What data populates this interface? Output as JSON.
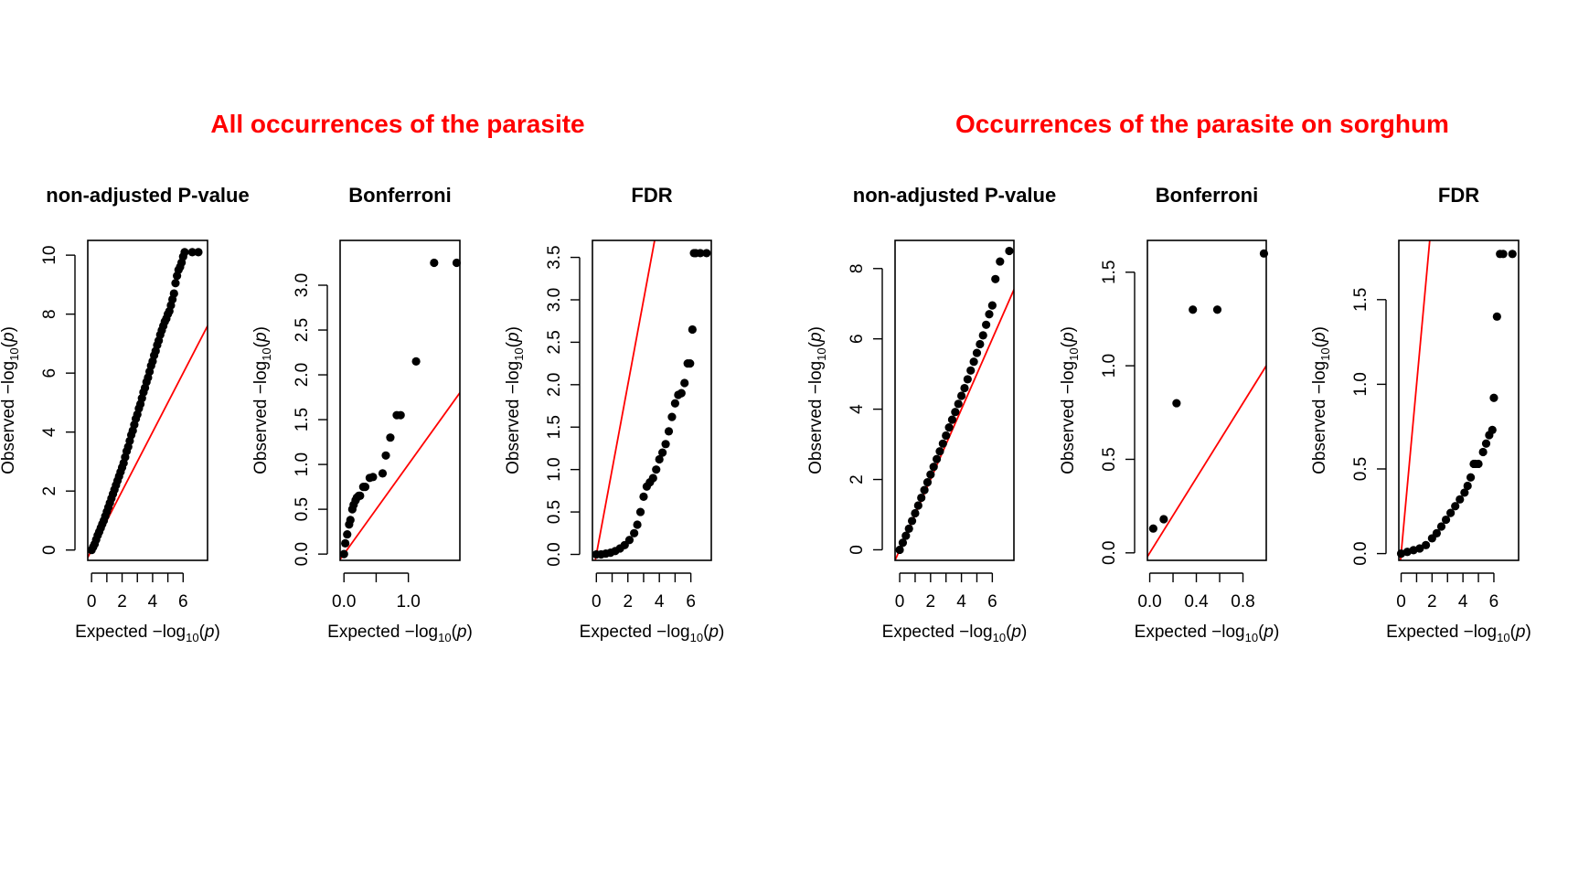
{
  "colors": {
    "title": "#ff0000",
    "reference_line": "#ff0000",
    "points": "#000000",
    "frame": "#000000"
  },
  "groups": [
    {
      "title": "All occurrences of the parasite"
    },
    {
      "title": "Occurrences of the parasite on sorghum"
    }
  ],
  "axis_text": {
    "xlabel_prefix": "Expected  −log",
    "ylabel_prefix": "Observed  −log",
    "log_base": "10",
    "p_symbol": "p"
  },
  "chart_data": [
    {
      "type": "scatter",
      "group": "All occurrences of the parasite",
      "title": "non-adjusted P-value",
      "xlim": [
        -0.25,
        7.6
      ],
      "ylim": [
        -0.35,
        10.5
      ],
      "xticks": [
        0,
        2,
        4,
        6
      ],
      "xtick_labels": [
        "0",
        "2",
        "4",
        "6"
      ],
      "yticks": [
        0,
        2,
        4,
        6,
        8,
        10
      ],
      "ytick_labels": [
        "0",
        "2",
        "4",
        "6",
        "8",
        "10"
      ],
      "reference_line": {
        "slope": 1,
        "intercept": 0
      },
      "series": [
        {
          "x": [
            0,
            0.1,
            0.2,
            0.3,
            0.4,
            0.5,
            0.6,
            0.7,
            0.8,
            0.9,
            1,
            1.1,
            1.2,
            1.3,
            1.4,
            1.5,
            1.6,
            1.7,
            1.8,
            1.9,
            2,
            2.1,
            2.2,
            2.3,
            2.4,
            2.5,
            2.6,
            2.7,
            2.8,
            2.9,
            3,
            3.1,
            3.2,
            3.3,
            3.4,
            3.5,
            3.6,
            3.7,
            3.8,
            3.9,
            4,
            4.1,
            4.2,
            4.3,
            4.4,
            4.5,
            4.6,
            4.7,
            4.8,
            4.9,
            5,
            5.1,
            5.2,
            5.3,
            5.4,
            5.5,
            5.6,
            5.7,
            5.8,
            5.9,
            6,
            6.1,
            6.6,
            7.0
          ],
          "y": [
            0,
            0.1,
            0.2,
            0.35,
            0.5,
            0.62,
            0.75,
            0.88,
            1.0,
            1.15,
            1.3,
            1.45,
            1.6,
            1.75,
            1.9,
            2.05,
            2.2,
            2.35,
            2.5,
            2.65,
            2.8,
            2.95,
            3.15,
            3.35,
            3.5,
            3.7,
            3.9,
            4.05,
            4.25,
            4.45,
            4.6,
            4.8,
            4.95,
            5.15,
            5.35,
            5.5,
            5.7,
            5.85,
            6.05,
            6.25,
            6.4,
            6.6,
            6.75,
            6.95,
            7.1,
            7.3,
            7.45,
            7.6,
            7.75,
            7.85,
            8.0,
            8.1,
            8.3,
            8.5,
            8.7,
            9.05,
            9.3,
            9.5,
            9.6,
            9.75,
            9.95,
            10.1,
            10.1,
            10.1
          ]
        }
      ]
    },
    {
      "type": "scatter",
      "group": "All occurrences of the parasite",
      "title": "Bonferroni",
      "xlim": [
        -0.06,
        1.8
      ],
      "ylim": [
        -0.07,
        3.5
      ],
      "xticks": [
        0,
        1
      ],
      "xtick_labels": [
        "0.0",
        "1.0"
      ],
      "yticks": [
        0,
        0.5,
        1,
        1.5,
        2,
        2.5,
        3
      ],
      "ytick_labels": [
        "0.0",
        "0.5",
        "1.0",
        "1.5",
        "2.0",
        "2.5",
        "3.0"
      ],
      "reference_line": {
        "slope": 1,
        "intercept": 0
      },
      "series": [
        {
          "x": [
            0.0,
            0.02,
            0.05,
            0.08,
            0.1,
            0.13,
            0.15,
            0.18,
            0.2,
            0.23,
            0.25,
            0.3,
            0.33,
            0.4,
            0.45,
            0.6,
            0.65,
            0.72,
            0.82,
            0.88,
            1.12,
            1.4,
            1.75
          ],
          "y": [
            0.0,
            0.12,
            0.22,
            0.33,
            0.38,
            0.5,
            0.55,
            0.6,
            0.63,
            0.65,
            0.65,
            0.75,
            0.75,
            0.85,
            0.86,
            0.9,
            1.1,
            1.3,
            1.55,
            1.55,
            2.15,
            3.25,
            3.25
          ]
        }
      ]
    },
    {
      "type": "scatter",
      "group": "All occurrences of the parasite",
      "title": "FDR",
      "xlim": [
        -0.25,
        7.3
      ],
      "ylim": [
        -0.07,
        3.7
      ],
      "xticks": [
        0,
        2,
        4,
        6
      ],
      "xtick_labels": [
        "0",
        "2",
        "4",
        "6"
      ],
      "yticks": [
        0,
        0.5,
        1,
        1.5,
        2,
        2.5,
        3,
        3.5
      ],
      "ytick_labels": [
        "0.0",
        "0.5",
        "1.0",
        "1.5",
        "2.0",
        "2.5",
        "3.0",
        "3.5"
      ],
      "reference_line": {
        "slope": 1,
        "intercept": 0
      },
      "series": [
        {
          "x": [
            0,
            0.3,
            0.6,
            0.9,
            1.2,
            1.5,
            1.8,
            2.1,
            2.4,
            2.6,
            2.8,
            3.0,
            3.2,
            3.4,
            3.6,
            3.8,
            4.0,
            4.2,
            4.4,
            4.6,
            4.8,
            5.0,
            5.2,
            5.4,
            5.6,
            5.8,
            5.95,
            6.1,
            6.2,
            6.3,
            6.6,
            7.0
          ],
          "y": [
            0,
            0,
            0.01,
            0.02,
            0.04,
            0.07,
            0.11,
            0.17,
            0.25,
            0.35,
            0.5,
            0.68,
            0.8,
            0.85,
            0.9,
            1.0,
            1.12,
            1.2,
            1.3,
            1.45,
            1.62,
            1.78,
            1.88,
            1.9,
            2.02,
            2.25,
            2.25,
            2.65,
            3.55,
            3.55,
            3.55,
            3.55
          ]
        }
      ]
    },
    {
      "type": "scatter",
      "group": "Occurrences of the parasite on sorghum",
      "title": "non-adjusted P-value",
      "xlim": [
        -0.3,
        7.4
      ],
      "ylim": [
        -0.3,
        8.8
      ],
      "xticks": [
        0,
        2,
        4,
        6
      ],
      "xtick_labels": [
        "0",
        "2",
        "4",
        "6"
      ],
      "yticks": [
        0,
        2,
        4,
        6,
        8
      ],
      "ytick_labels": [
        "0",
        "2",
        "4",
        "6",
        "8"
      ],
      "reference_line": {
        "slope": 1,
        "intercept": 0
      },
      "series": [
        {
          "x": [
            0,
            0.2,
            0.4,
            0.6,
            0.8,
            1.0,
            1.2,
            1.4,
            1.6,
            1.8,
            2.0,
            2.2,
            2.4,
            2.6,
            2.8,
            3.0,
            3.2,
            3.4,
            3.6,
            3.8,
            4.0,
            4.2,
            4.4,
            4.6,
            4.8,
            5.0,
            5.2,
            5.4,
            5.6,
            5.8,
            6.0,
            6.2,
            6.5,
            7.1
          ],
          "y": [
            0,
            0.2,
            0.4,
            0.6,
            0.82,
            1.04,
            1.26,
            1.48,
            1.7,
            1.92,
            2.14,
            2.36,
            2.58,
            2.8,
            3.02,
            3.25,
            3.48,
            3.7,
            3.92,
            4.15,
            4.38,
            4.6,
            4.85,
            5.1,
            5.35,
            5.6,
            5.85,
            6.1,
            6.4,
            6.7,
            6.95,
            7.7,
            8.2,
            8.5
          ]
        }
      ]
    },
    {
      "type": "scatter",
      "group": "Occurrences of the parasite on sorghum",
      "title": "Bonferroni",
      "xlim": [
        -0.02,
        1.0
      ],
      "ylim": [
        -0.04,
        1.67
      ],
      "xticks": [
        0,
        0.4,
        0.8
      ],
      "xtick_labels": [
        "0.0",
        "0.4",
        "0.8"
      ],
      "yticks": [
        0,
        0.5,
        1,
        1.5
      ],
      "ytick_labels": [
        "0.0",
        "0.5",
        "1.0",
        "1.5"
      ],
      "reference_line": {
        "slope": 1,
        "intercept": 0
      },
      "series": [
        {
          "x": [
            0.03,
            0.12,
            0.23,
            0.37,
            0.58,
            0.98
          ],
          "y": [
            0.13,
            0.18,
            0.8,
            1.3,
            1.3,
            1.6
          ]
        }
      ]
    },
    {
      "type": "scatter",
      "group": "Occurrences of the parasite on sorghum",
      "title": "FDR",
      "xlim": [
        -0.15,
        7.6
      ],
      "ylim": [
        -0.04,
        1.85
      ],
      "xticks": [
        0,
        2,
        4,
        6
      ],
      "xtick_labels": [
        "0",
        "2",
        "4",
        "6"
      ],
      "yticks": [
        0,
        0.5,
        1,
        1.5
      ],
      "ytick_labels": [
        "0.0",
        "0.5",
        "1.0",
        "1.5"
      ],
      "reference_line": {
        "slope": 1,
        "intercept": 0
      },
      "series": [
        {
          "x": [
            0,
            0.4,
            0.8,
            1.2,
            1.6,
            2.0,
            2.3,
            2.6,
            2.9,
            3.2,
            3.5,
            3.8,
            4.1,
            4.3,
            4.5,
            4.7,
            4.8,
            5.0,
            5.3,
            5.5,
            5.7,
            5.9,
            6.0,
            6.2,
            6.4,
            6.6,
            7.2
          ],
          "y": [
            0,
            0.01,
            0.02,
            0.03,
            0.05,
            0.09,
            0.12,
            0.16,
            0.2,
            0.24,
            0.28,
            0.32,
            0.36,
            0.4,
            0.45,
            0.53,
            0.53,
            0.53,
            0.6,
            0.65,
            0.7,
            0.73,
            0.92,
            1.4,
            1.77,
            1.77,
            1.77
          ]
        }
      ]
    }
  ]
}
